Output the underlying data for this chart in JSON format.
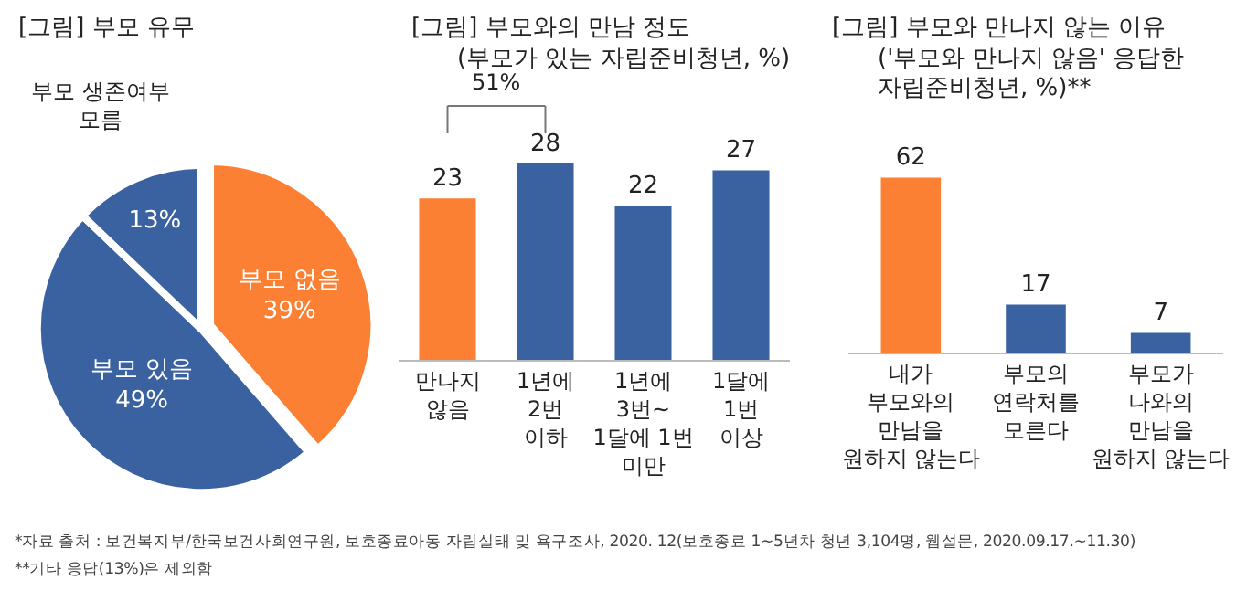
{
  "chart_data": [
    {
      "type": "pie",
      "title": "[그림] 부모 유무",
      "categories": [
        "부모 없음",
        "부모 있음",
        "부모 생존여부\n모름"
      ],
      "values": [
        39,
        49,
        13
      ],
      "value_labels": [
        "39%",
        "49%",
        "13%"
      ],
      "colors": [
        "#fc8034",
        "#3a62a0",
        "#3a62a0"
      ],
      "annotations": [
        "*자료 출처 : 보건복지부/한국보건사회연구원, 보호종료아동 자립실태 및 욕구조사, 2020. 12(보호종료 1~5년차 청년 3,104명, 웹설문, 2020.09.17.~11.30)",
        "**기타 응답(13%)은 제외함"
      ]
    },
    {
      "type": "bar",
      "title": "[그림] 부모와의 만남 정도",
      "subtitle": "(부모가 있는 자립준비청년, %)",
      "categories": [
        "만나지\n않음",
        "1년에\n2번\n이하",
        "1년에\n3번~\n1달에 1번\n미만",
        "1달에\n1번\n이상"
      ],
      "values": [
        23,
        28,
        22,
        27
      ],
      "colors": [
        "#fc8034",
        "#3a62a0",
        "#3a62a0",
        "#3a62a0"
      ],
      "data_labels": true,
      "annotations": [
        "51%"
      ]
    },
    {
      "type": "bar",
      "title": "[그림] 부모와 만나지 않는 이유",
      "subtitle": "('부모와 만나지 않음' 응답한\n자립준비청년, %)**",
      "categories": [
        "내가\n부모와의\n만남을\n원하지 않는다",
        "부모의\n연락처를\n모른다",
        "부모가\n나와의\n만남을\n원하지 않는다"
      ],
      "values": [
        62,
        17,
        7
      ],
      "colors": [
        "#fc8034",
        "#3a62a0",
        "#3a62a0"
      ],
      "data_labels": true
    }
  ]
}
